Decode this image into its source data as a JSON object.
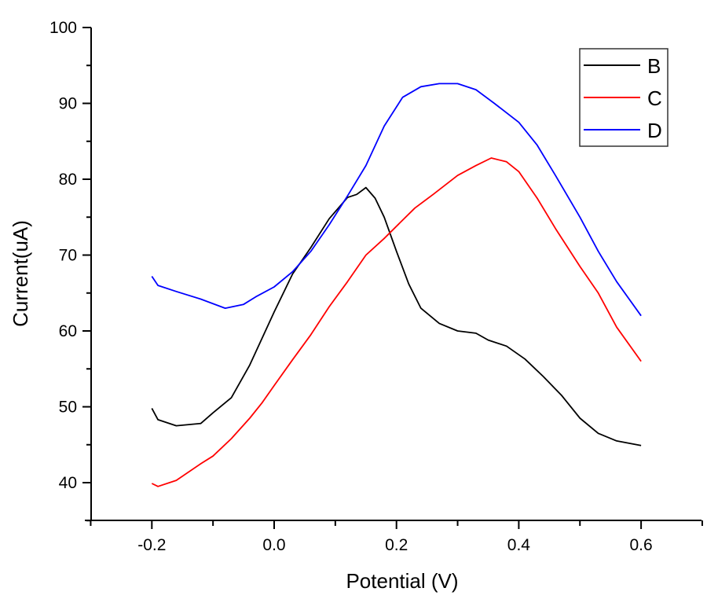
{
  "chart_data": {
    "type": "line",
    "title": "",
    "xlabel": "Potential (V)",
    "ylabel": "Current(uA)",
    "xlim": [
      -0.3,
      0.7
    ],
    "ylim": [
      35,
      100
    ],
    "x_ticks": [
      -0.2,
      0.0,
      0.2,
      0.4,
      0.6
    ],
    "x_tick_labels": [
      "-0.2",
      "0.0",
      "0.2",
      "0.4",
      "0.6"
    ],
    "x_minor_ticks": [
      -0.3,
      -0.1,
      0.1,
      0.3,
      0.5,
      0.7
    ],
    "y_ticks": [
      40,
      50,
      60,
      70,
      80,
      90,
      100
    ],
    "y_tick_labels": [
      "40",
      "50",
      "60",
      "70",
      "80",
      "90",
      "100"
    ],
    "y_minor_ticks": [
      35,
      45,
      55,
      65,
      75,
      85,
      95
    ],
    "grid": false,
    "legend_position": "top-right",
    "series": [
      {
        "name": "B",
        "color": "#000000",
        "points": [
          [
            -0.2,
            49.8
          ],
          [
            -0.19,
            48.3
          ],
          [
            -0.16,
            47.5
          ],
          [
            -0.12,
            47.8
          ],
          [
            -0.1,
            49.2
          ],
          [
            -0.07,
            51.2
          ],
          [
            -0.04,
            55.5
          ],
          [
            -0.02,
            59
          ],
          [
            0,
            62.5
          ],
          [
            0.03,
            67.5
          ],
          [
            0.06,
            71
          ],
          [
            0.09,
            74.8
          ],
          [
            0.12,
            77.6
          ],
          [
            0.135,
            78
          ],
          [
            0.15,
            78.9
          ],
          [
            0.165,
            77.5
          ],
          [
            0.18,
            75
          ],
          [
            0.2,
            70.5
          ],
          [
            0.22,
            66.2
          ],
          [
            0.24,
            63
          ],
          [
            0.27,
            61
          ],
          [
            0.3,
            60
          ],
          [
            0.33,
            59.7
          ],
          [
            0.35,
            58.8
          ],
          [
            0.38,
            58
          ],
          [
            0.41,
            56.3
          ],
          [
            0.44,
            54
          ],
          [
            0.47,
            51.5
          ],
          [
            0.5,
            48.5
          ],
          [
            0.53,
            46.5
          ],
          [
            0.56,
            45.5
          ],
          [
            0.6,
            44.9
          ]
        ]
      },
      {
        "name": "C",
        "color": "#ff0000",
        "points": [
          [
            -0.2,
            39.9
          ],
          [
            -0.19,
            39.5
          ],
          [
            -0.16,
            40.3
          ],
          [
            -0.12,
            42.5
          ],
          [
            -0.1,
            43.5
          ],
          [
            -0.07,
            45.8
          ],
          [
            -0.04,
            48.5
          ],
          [
            -0.02,
            50.5
          ],
          [
            0,
            52.8
          ],
          [
            0.03,
            56.2
          ],
          [
            0.06,
            59.5
          ],
          [
            0.09,
            63.2
          ],
          [
            0.12,
            66.5
          ],
          [
            0.15,
            70
          ],
          [
            0.18,
            72.2
          ],
          [
            0.2,
            73.8
          ],
          [
            0.23,
            76.2
          ],
          [
            0.26,
            78
          ],
          [
            0.3,
            80.5
          ],
          [
            0.33,
            81.8
          ],
          [
            0.355,
            82.8
          ],
          [
            0.38,
            82.3
          ],
          [
            0.4,
            81
          ],
          [
            0.43,
            77.5
          ],
          [
            0.46,
            73.5
          ],
          [
            0.5,
            68.5
          ],
          [
            0.53,
            65
          ],
          [
            0.56,
            60.5
          ],
          [
            0.6,
            56
          ]
        ]
      },
      {
        "name": "D",
        "color": "#0000ff",
        "points": [
          [
            -0.2,
            67.2
          ],
          [
            -0.19,
            66
          ],
          [
            -0.16,
            65.2
          ],
          [
            -0.12,
            64.2
          ],
          [
            -0.08,
            63
          ],
          [
            -0.05,
            63.5
          ],
          [
            -0.03,
            64.5
          ],
          [
            0,
            65.8
          ],
          [
            0.03,
            67.8
          ],
          [
            0.06,
            70.5
          ],
          [
            0.09,
            74
          ],
          [
            0.12,
            77.8
          ],
          [
            0.15,
            81.8
          ],
          [
            0.18,
            87
          ],
          [
            0.21,
            90.8
          ],
          [
            0.24,
            92.2
          ],
          [
            0.27,
            92.6
          ],
          [
            0.3,
            92.6
          ],
          [
            0.33,
            91.8
          ],
          [
            0.36,
            90
          ],
          [
            0.4,
            87.5
          ],
          [
            0.43,
            84.5
          ],
          [
            0.46,
            80.5
          ],
          [
            0.5,
            75
          ],
          [
            0.53,
            70.5
          ],
          [
            0.56,
            66.5
          ],
          [
            0.6,
            62
          ]
        ]
      }
    ]
  }
}
